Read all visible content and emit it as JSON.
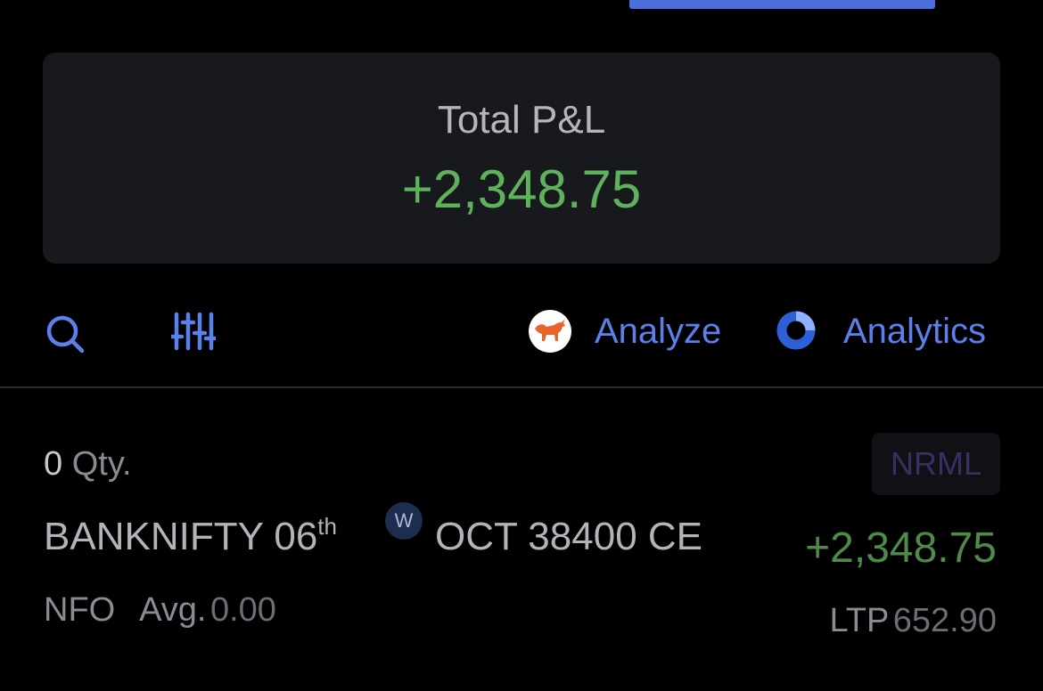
{
  "summary": {
    "label": "Total P&L",
    "value": "+2,348.75"
  },
  "toolbar": {
    "search_icon": "search-icon",
    "filter_icon": "filter-sliders-icon",
    "analyze_icon": "bull-icon",
    "analyze_label": "Analyze",
    "analytics_icon": "analytics-ring-icon",
    "analytics_label": "Analytics"
  },
  "position": {
    "qty_value": "0",
    "qty_unit": "Qty.",
    "product": "NRML",
    "symbol": "BANKNIFTY 06",
    "day_suffix": "th",
    "weekly_badge": "W",
    "contract": "OCT 38400 CE",
    "pnl": "+2,348.75",
    "exchange": "NFO",
    "avg_label": "Avg.",
    "avg_value": "0.00",
    "ltp_label": "LTP",
    "ltp_value": "652.90"
  },
  "colors": {
    "accent": "#5b80ea",
    "profit": "#5fb25c",
    "card": "#18191d",
    "background": "#000000"
  }
}
